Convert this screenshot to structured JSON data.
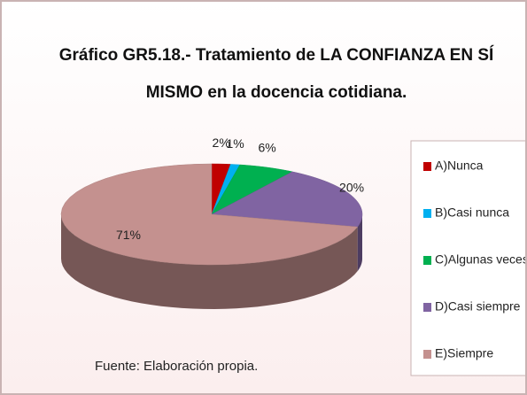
{
  "chart_data": {
    "type": "pie3d",
    "title": "Gráfico GR5.18.- Tratamiento de LA CONFIANZA EN SÍ MISMO en la docencia cotidiana.",
    "categories": [
      "A)Nunca",
      "B)Casi nunca",
      "C)Algunas veces",
      "D)Casi siempre",
      "E)Siempre"
    ],
    "values": [
      2,
      1,
      6,
      20,
      71
    ],
    "value_labels": [
      "2%",
      "1%",
      "6%",
      "20%",
      "71%"
    ],
    "colors": [
      "#c00000",
      "#00b0f0",
      "#00b050",
      "#8064a2",
      "#c4918f"
    ],
    "legend": "right",
    "annotation": "Fuente: Elaboración propia."
  }
}
